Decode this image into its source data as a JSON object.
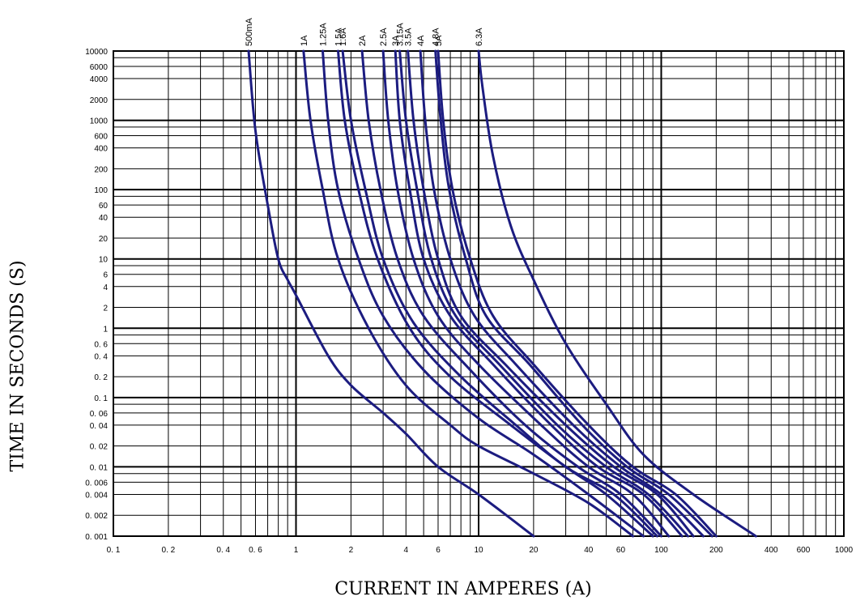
{
  "chart_data": {
    "type": "line",
    "title": "",
    "xlabel": "CURRENT IN AMPERES  (A)",
    "ylabel": "TIME IN SECONDS  (S)",
    "x_scale": "log",
    "y_scale": "log",
    "xlim": [
      0.1,
      1000
    ],
    "ylim": [
      0.001,
      10000
    ],
    "grid": true,
    "x_ticks": [
      {
        "v": 0.1,
        "label": "0. 1"
      },
      {
        "v": 0.2,
        "label": "0. 2"
      },
      {
        "v": 0.4,
        "label": "0. 4"
      },
      {
        "v": 0.6,
        "label": "0. 6"
      },
      {
        "v": 1,
        "label": "1"
      },
      {
        "v": 2,
        "label": "2"
      },
      {
        "v": 4,
        "label": "4"
      },
      {
        "v": 6,
        "label": "6"
      },
      {
        "v": 10,
        "label": "10"
      },
      {
        "v": 20,
        "label": "20"
      },
      {
        "v": 40,
        "label": "40"
      },
      {
        "v": 60,
        "label": "60"
      },
      {
        "v": 100,
        "label": "100"
      },
      {
        "v": 200,
        "label": "200"
      },
      {
        "v": 400,
        "label": "400"
      },
      {
        "v": 600,
        "label": "600"
      },
      {
        "v": 1000,
        "label": "1000"
      }
    ],
    "y_ticks": [
      {
        "v": 10000,
        "label": "10000"
      },
      {
        "v": 6000,
        "label": "6000"
      },
      {
        "v": 4000,
        "label": "4000"
      },
      {
        "v": 2000,
        "label": "2000"
      },
      {
        "v": 1000,
        "label": "1000"
      },
      {
        "v": 600,
        "label": "600"
      },
      {
        "v": 400,
        "label": "400"
      },
      {
        "v": 200,
        "label": "200"
      },
      {
        "v": 100,
        "label": "100"
      },
      {
        "v": 60,
        "label": "60"
      },
      {
        "v": 40,
        "label": "40"
      },
      {
        "v": 20,
        "label": "20"
      },
      {
        "v": 10,
        "label": "10"
      },
      {
        "v": 6,
        "label": "6"
      },
      {
        "v": 4,
        "label": "4"
      },
      {
        "v": 2,
        "label": "2"
      },
      {
        "v": 1,
        "label": "1"
      },
      {
        "v": 0.6,
        "label": "0. 6"
      },
      {
        "v": 0.4,
        "label": "0. 4"
      },
      {
        "v": 0.2,
        "label": "0. 2"
      },
      {
        "v": 0.1,
        "label": "0. 1"
      },
      {
        "v": 0.06,
        "label": "0. 06"
      },
      {
        "v": 0.04,
        "label": "0. 04"
      },
      {
        "v": 0.02,
        "label": "0. 02"
      },
      {
        "v": 0.01,
        "label": "0. 01"
      },
      {
        "v": 0.006,
        "label": "0. 006"
      },
      {
        "v": 0.004,
        "label": "0. 004"
      },
      {
        "v": 0.002,
        "label": "0. 002"
      },
      {
        "v": 0.001,
        "label": "0. 001"
      }
    ],
    "line_color": "#1c1c80",
    "series": [
      {
        "name": "500mA",
        "points": [
          [
            0.55,
            10000
          ],
          [
            0.6,
            700
          ],
          [
            0.7,
            60
          ],
          [
            0.8,
            10
          ],
          [
            0.9,
            5
          ],
          [
            1,
            3
          ],
          [
            1.5,
            0.4
          ],
          [
            2,
            0.15
          ],
          [
            3,
            0.06
          ],
          [
            4,
            0.03
          ],
          [
            6,
            0.01
          ],
          [
            10,
            0.004
          ],
          [
            20,
            0.001
          ]
        ]
      },
      {
        "name": "1A",
        "points": [
          [
            1.1,
            10000
          ],
          [
            1.2,
            1000
          ],
          [
            1.4,
            100
          ],
          [
            1.7,
            10
          ],
          [
            2.5,
            1
          ],
          [
            4,
            0.15
          ],
          [
            7,
            0.04
          ],
          [
            10,
            0.02
          ],
          [
            20,
            0.008
          ],
          [
            40,
            0.003
          ],
          [
            70,
            0.001
          ]
        ]
      },
      {
        "name": "1.25A",
        "points": [
          [
            1.4,
            10000
          ],
          [
            1.5,
            1000
          ],
          [
            1.7,
            100
          ],
          [
            2.2,
            10
          ],
          [
            3,
            1.5
          ],
          [
            5,
            0.25
          ],
          [
            10,
            0.05
          ],
          [
            20,
            0.015
          ],
          [
            40,
            0.004
          ],
          [
            80,
            0.001
          ]
        ]
      },
      {
        "name": "1.5A",
        "points": [
          [
            1.7,
            10000
          ],
          [
            1.85,
            1000
          ],
          [
            2.2,
            100
          ],
          [
            2.8,
            10
          ],
          [
            4.2,
            1
          ],
          [
            7,
            0.2
          ],
          [
            15,
            0.04
          ],
          [
            30,
            0.01
          ],
          [
            50,
            0.004
          ],
          [
            90,
            0.001
          ]
        ]
      },
      {
        "name": "1.6A",
        "points": [
          [
            1.8,
            10000
          ],
          [
            2,
            1000
          ],
          [
            2.4,
            100
          ],
          [
            3,
            10
          ],
          [
            4.4,
            1.2
          ],
          [
            8,
            0.2
          ],
          [
            16,
            0.04
          ],
          [
            30,
            0.01
          ],
          [
            55,
            0.004
          ],
          [
            95,
            0.001
          ]
        ]
      },
      {
        "name": "2A",
        "points": [
          [
            2.3,
            10000
          ],
          [
            2.5,
            1000
          ],
          [
            2.9,
            100
          ],
          [
            3.6,
            10
          ],
          [
            5,
            1.5
          ],
          [
            9,
            0.25
          ],
          [
            18,
            0.04
          ],
          [
            35,
            0.01
          ],
          [
            60,
            0.004
          ],
          [
            100,
            0.001
          ]
        ]
      },
      {
        "name": "2.5A",
        "points": [
          [
            3.0,
            10000
          ],
          [
            3.2,
            1000
          ],
          [
            3.6,
            100
          ],
          [
            4.4,
            10
          ],
          [
            6,
            1.5
          ],
          [
            10,
            0.3
          ],
          [
            22,
            0.04
          ],
          [
            40,
            0.01
          ],
          [
            70,
            0.004
          ],
          [
            110,
            0.001
          ]
        ]
      },
      {
        "name": "3A",
        "points": [
          [
            3.5,
            10000
          ],
          [
            3.7,
            1000
          ],
          [
            4.2,
            100
          ],
          [
            5,
            10
          ],
          [
            7,
            1.5
          ],
          [
            12,
            0.3
          ],
          [
            25,
            0.04
          ],
          [
            45,
            0.01
          ],
          [
            80,
            0.004
          ],
          [
            130,
            0.001
          ]
        ]
      },
      {
        "name": "3.15A",
        "points": [
          [
            3.7,
            10000
          ],
          [
            4,
            1000
          ],
          [
            4.6,
            100
          ],
          [
            5.5,
            10
          ],
          [
            7.5,
            1.5
          ],
          [
            13,
            0.3
          ],
          [
            27,
            0.04
          ],
          [
            50,
            0.01
          ],
          [
            85,
            0.004
          ],
          [
            140,
            0.001
          ]
        ]
      },
      {
        "name": "3.5A",
        "points": [
          [
            4.1,
            10000
          ],
          [
            4.4,
            1000
          ],
          [
            5,
            100
          ],
          [
            6,
            10
          ],
          [
            8,
            1.5
          ],
          [
            14,
            0.3
          ],
          [
            30,
            0.04
          ],
          [
            55,
            0.01
          ],
          [
            95,
            0.004
          ],
          [
            150,
            0.001
          ]
        ]
      },
      {
        "name": "4A",
        "points": [
          [
            4.8,
            10000
          ],
          [
            5.1,
            1000
          ],
          [
            5.7,
            100
          ],
          [
            7,
            10
          ],
          [
            9.5,
            1.5
          ],
          [
            16,
            0.3
          ],
          [
            33,
            0.04
          ],
          [
            60,
            0.01
          ],
          [
            100,
            0.004
          ],
          [
            170,
            0.001
          ]
        ]
      },
      {
        "name": "4.8A",
        "points": [
          [
            5.8,
            10000
          ],
          [
            6.2,
            1000
          ],
          [
            6.9,
            100
          ],
          [
            8.5,
            10
          ],
          [
            11,
            1.5
          ],
          [
            19,
            0.3
          ],
          [
            37,
            0.04
          ],
          [
            65,
            0.01
          ],
          [
            110,
            0.004
          ],
          [
            190,
            0.001
          ]
        ]
      },
      {
        "name": "5A",
        "points": [
          [
            6.0,
            10000
          ],
          [
            6.4,
            1000
          ],
          [
            7.2,
            100
          ],
          [
            9,
            10
          ],
          [
            12,
            1.5
          ],
          [
            20,
            0.3
          ],
          [
            40,
            0.04
          ],
          [
            70,
            0.01
          ],
          [
            120,
            0.004
          ],
          [
            200,
            0.001
          ]
        ]
      },
      {
        "name": "6.3A",
        "points": [
          [
            10,
            10000
          ],
          [
            10.5,
            3000
          ],
          [
            12,
            300
          ],
          [
            15,
            30
          ],
          [
            20,
            5
          ],
          [
            30,
            0.6
          ],
          [
            50,
            0.08
          ],
          [
            80,
            0.015
          ],
          [
            150,
            0.004
          ],
          [
            330,
            0.001
          ]
        ]
      }
    ]
  }
}
